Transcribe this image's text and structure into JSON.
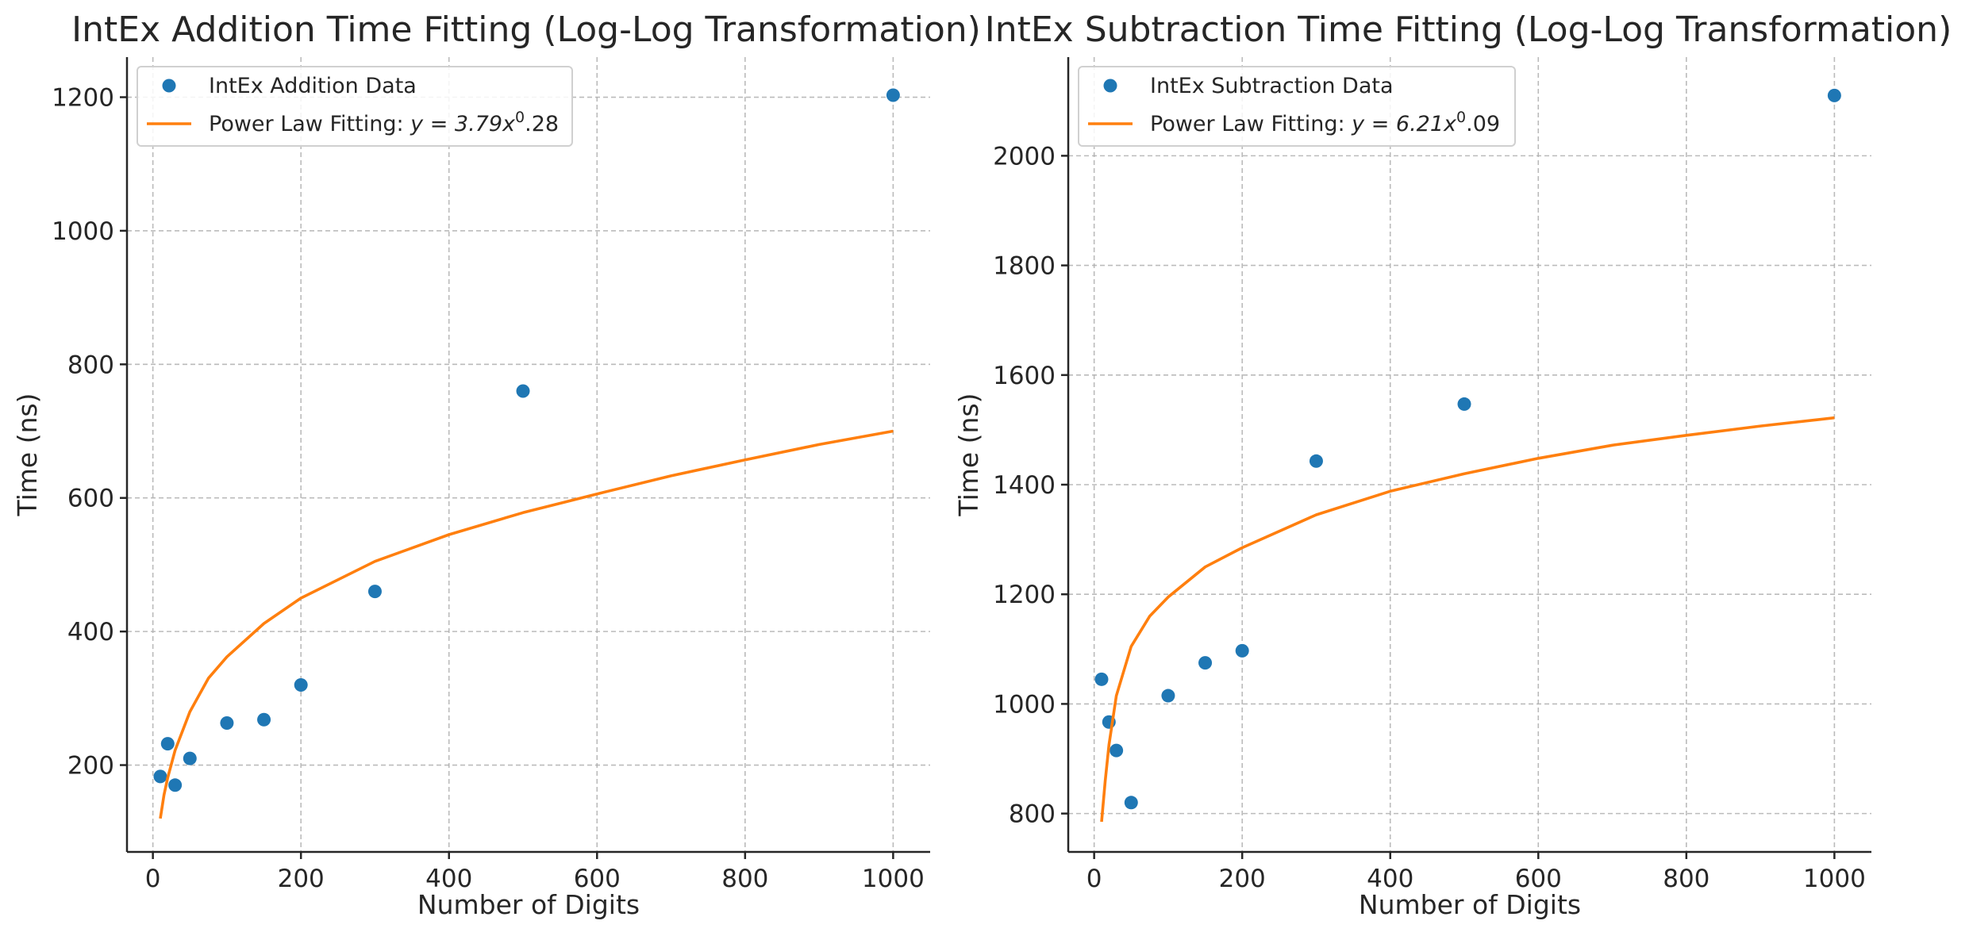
{
  "chart_data": [
    {
      "type": "scatter",
      "title": "IntEx Addition Time Fitting (Log-Log Transformation)",
      "xlabel": "Number of Digits",
      "ylabel": "Time (ns)",
      "xlim": [
        -35,
        1050
      ],
      "ylim": [
        70,
        1260
      ],
      "xticks": [
        0,
        200,
        400,
        600,
        800,
        1000
      ],
      "yticks": [
        200,
        400,
        600,
        800,
        1000,
        1200
      ],
      "grid": true,
      "legend_position": "top-left",
      "series": [
        {
          "name": "IntEx Addition Data",
          "kind": "scatter",
          "color": "#1f77b4",
          "x": [
            10,
            20,
            30,
            50,
            100,
            150,
            200,
            300,
            500,
            1000
          ],
          "y": [
            183,
            232,
            170,
            210,
            263,
            268,
            320,
            460,
            760,
            1203
          ]
        },
        {
          "name": "Power Law Fitting: y = 3.79x^0.28",
          "legend_label_prefix": "Power Law Fitting: ",
          "legend_label_math": "y = 3.79x",
          "legend_label_sup": "0",
          "legend_label_suffix": ".28",
          "kind": "line",
          "color": "#ff7f0e",
          "x": [
            10,
            15,
            20,
            30,
            50,
            75,
            100,
            150,
            200,
            300,
            400,
            500,
            600,
            700,
            800,
            900,
            1000
          ],
          "y": [
            120,
            155,
            181,
            222,
            280,
            330,
            362,
            412,
            450,
            505,
            545,
            578,
            606,
            633,
            657,
            680,
            700
          ]
        }
      ]
    },
    {
      "type": "scatter",
      "title": "IntEx Subtraction Time Fitting (Log-Log Transformation)",
      "xlabel": "Number of Digits",
      "ylabel": "Time (ns)",
      "xlim": [
        -35,
        1050
      ],
      "ylim": [
        730,
        2180
      ],
      "xticks": [
        0,
        200,
        400,
        600,
        800,
        1000
      ],
      "yticks": [
        800,
        1000,
        1200,
        1400,
        1600,
        1800,
        2000
      ],
      "grid": true,
      "legend_position": "top-left",
      "series": [
        {
          "name": "IntEx Subtraction Data",
          "kind": "scatter",
          "color": "#1f77b4",
          "x": [
            10,
            20,
            30,
            50,
            100,
            150,
            200,
            300,
            500,
            1000
          ],
          "y": [
            1045,
            967,
            915,
            820,
            1015,
            1075,
            1097,
            1443,
            1547,
            2110
          ]
        },
        {
          "name": "Power Law Fitting: y = 6.21x^0.09",
          "legend_label_prefix": "Power Law Fitting: ",
          "legend_label_math": "y = 6.21x",
          "legend_label_sup": "0",
          "legend_label_suffix": ".09",
          "kind": "line",
          "color": "#ff7f0e",
          "x": [
            10,
            15,
            20,
            30,
            50,
            75,
            100,
            150,
            200,
            300,
            400,
            500,
            600,
            700,
            800,
            900,
            1000
          ],
          "y": [
            785,
            860,
            925,
            1015,
            1105,
            1160,
            1195,
            1250,
            1285,
            1345,
            1388,
            1420,
            1448,
            1472,
            1490,
            1507,
            1522
          ]
        }
      ]
    }
  ]
}
